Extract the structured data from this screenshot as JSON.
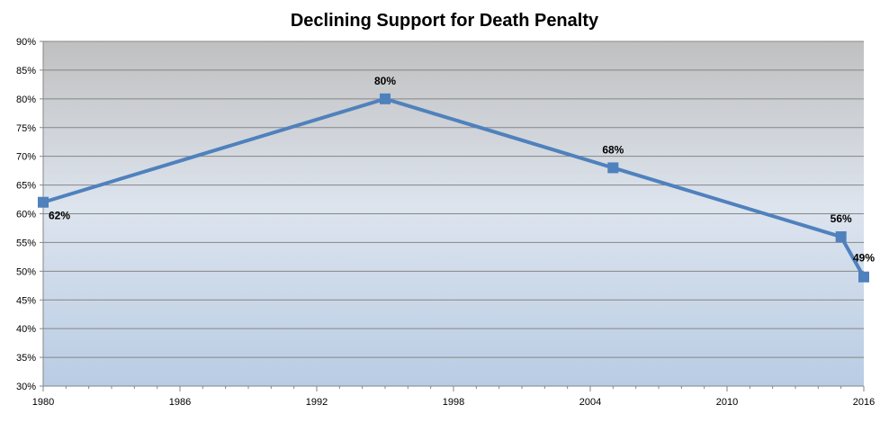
{
  "chart_data": {
    "type": "line",
    "title": "Declining Support for Death Penalty",
    "xlabel": "",
    "ylabel": "",
    "xlim": [
      1980,
      2016
    ],
    "ylim": [
      30,
      90
    ],
    "x_ticks": [
      1980,
      1986,
      1992,
      1998,
      2004,
      2010,
      2016
    ],
    "y_ticks": [
      30,
      35,
      40,
      45,
      50,
      55,
      60,
      65,
      70,
      75,
      80,
      85,
      90
    ],
    "y_tick_format": "percent",
    "grid": true,
    "legend": "none",
    "series": [
      {
        "x": [
          1980,
          1995,
          2005,
          2015,
          2016
        ],
        "values": [
          62,
          80,
          68,
          56,
          49
        ],
        "labels": [
          "62%",
          "80%",
          "68%",
          "56%",
          "49%"
        ]
      }
    ],
    "colors": {
      "line": "#4f81bd",
      "marker": "#4f81bd",
      "plot_bg_top": "#c0c0c0",
      "plot_bg_bottom": "#b8cce4",
      "gridline": "#868686"
    }
  }
}
